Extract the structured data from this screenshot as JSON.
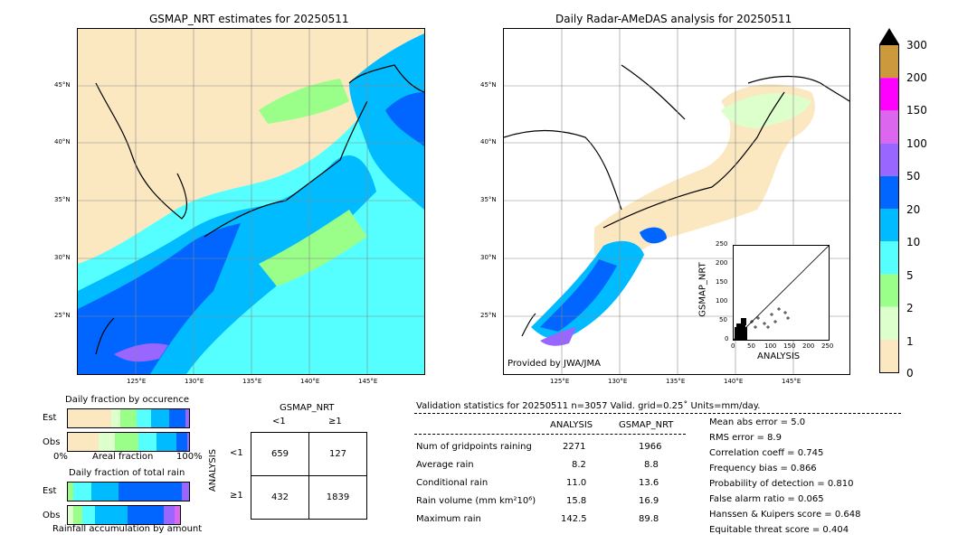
{
  "left_map": {
    "title": "GSMAP_NRT estimates for 20250511",
    "lat_labels": [
      "45°N",
      "40°N",
      "35°N",
      "30°N",
      "25°N"
    ],
    "lon_labels": [
      "125°E",
      "130°E",
      "135°E",
      "140°E",
      "145°E"
    ]
  },
  "right_map": {
    "title": "Daily Radar-AMeDAS analysis for 20250511",
    "lat_labels": [
      "45°N",
      "40°N",
      "35°N",
      "30°N",
      "25°N"
    ],
    "lon_labels": [
      "125°E",
      "130°E",
      "135°E",
      "140°E",
      "145°E"
    ],
    "provider": "Provided by JWA/JMA"
  },
  "colorbar": {
    "labels": [
      "300",
      "200",
      "150",
      "100",
      "50",
      "20",
      "10",
      "5",
      "2",
      "1",
      "0"
    ],
    "colors": [
      "#cc9a3c",
      "#ff00ff",
      "#dd66ee",
      "#9966ff",
      "#0066ff",
      "#00bbff",
      "#55ffff",
      "#99ff88",
      "#ddffcc",
      "#fbe8c0"
    ]
  },
  "inset_scatter": {
    "xlabel": "ANALYSIS",
    "ylabel": "GSMAP_NRT",
    "ticks": [
      "0",
      "50",
      "100",
      "150",
      "200",
      "250"
    ]
  },
  "fraction_occurrence": {
    "title": "Daily fraction by occurence",
    "est_label": "Est",
    "obs_label": "Obs",
    "axis_left": "0%",
    "axis_mid": "Areal fraction",
    "axis_right": "100%"
  },
  "fraction_total": {
    "title": "Daily fraction of total rain",
    "est_label": "Est",
    "obs_label": "Obs",
    "caption": "Rainfall accumulation by amount"
  },
  "contingency": {
    "top_title": "GSMAP_NRT",
    "col_lt": "<1",
    "col_ge": "≥1",
    "side_title": "ANALYSIS",
    "row_lt": "<1",
    "row_ge": "≥1",
    "cells": [
      "659",
      "127",
      "432",
      "1839"
    ]
  },
  "validation": {
    "header": "Validation statistics for 20250511  n=3057 Valid. grid=0.25˚ Units=mm/day.",
    "col_analysis": "ANALYSIS",
    "col_gsmap": "GSMAP_NRT",
    "rows": [
      {
        "label": "Num of gridpoints raining",
        "analysis": "2271",
        "gsmap": "1966"
      },
      {
        "label": "Average rain",
        "analysis": "8.2",
        "gsmap": "8.8"
      },
      {
        "label": "Conditional rain",
        "analysis": "11.0",
        "gsmap": "13.6"
      },
      {
        "label": "Rain volume (mm km²10⁶)",
        "analysis": "15.8",
        "gsmap": "16.9"
      },
      {
        "label": "Maximum rain",
        "analysis": "142.5",
        "gsmap": "89.8"
      }
    ],
    "scores": [
      "Mean abs error =    5.0",
      "RMS error =    8.9",
      "Correlation coeff =  0.745",
      "Frequency bias =  0.866",
      "Probability of detection =  0.810",
      "False alarm ratio =  0.065",
      "Hanssen & Kuipers score =  0.648",
      "Equitable threat score =  0.404"
    ]
  }
}
